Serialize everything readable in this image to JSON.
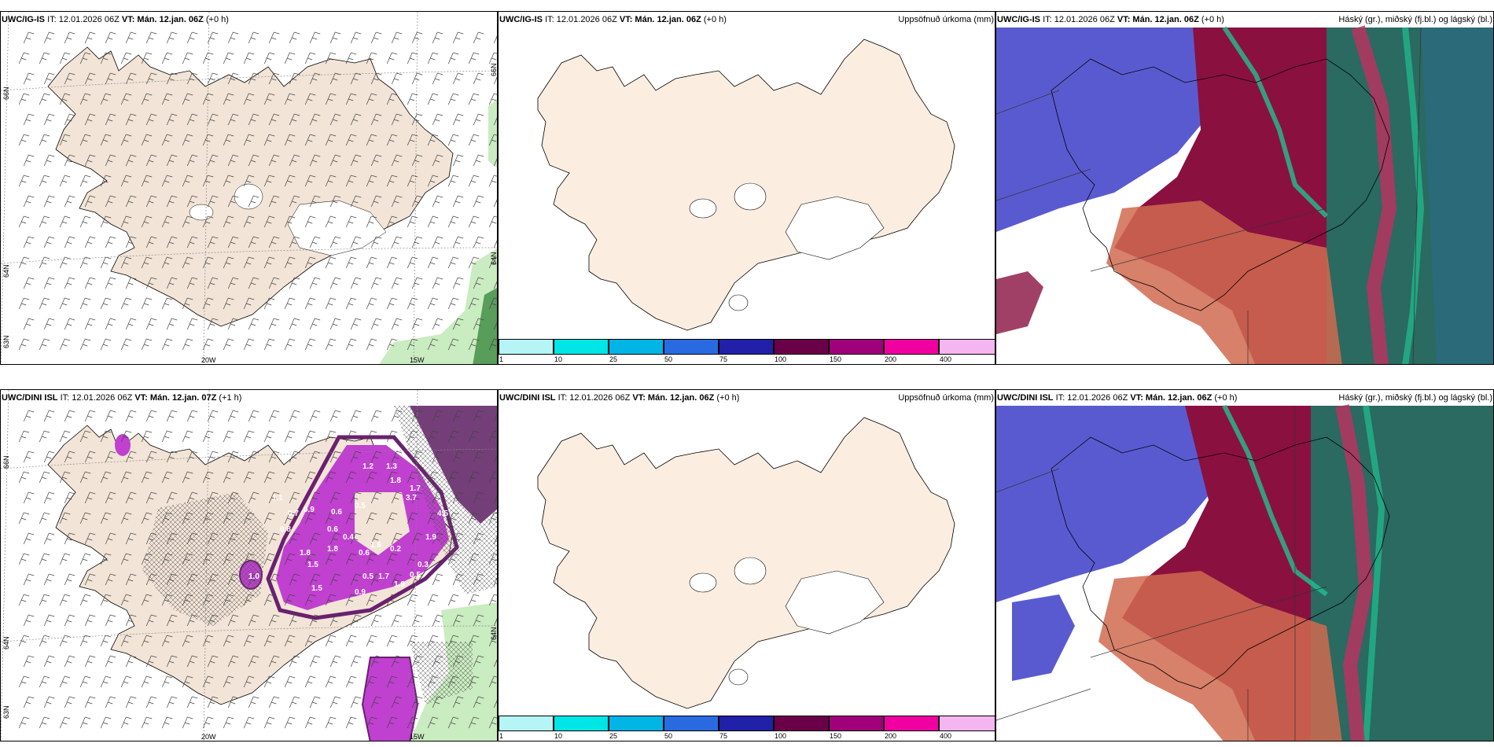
{
  "panels": {
    "ig_wind": {
      "model": "UWC/IG-IS",
      "it": "IT: 12.01.2026 06Z",
      "vt_label": "VT:",
      "vt": "Mán. 12.jan. 06Z",
      "lead": "(+0 h)",
      "lat_labels": [
        "66N",
        "64N",
        "63N"
      ],
      "lat_labels_right": [
        "66N",
        "64N"
      ],
      "lon_labels": [
        "20W",
        "15W"
      ]
    },
    "ig_precip": {
      "model": "UWC/IG-IS",
      "it": "IT: 12.01.2026 06Z",
      "vt_label": "VT:",
      "vt": "Mán. 12.jan. 06Z",
      "lead": "(+0 h)",
      "title_right": "Uppsöfnuð úrkoma (mm)"
    },
    "ig_cloud": {
      "model": "UWC/IG-IS",
      "it": "IT: 12.01.2026 06Z",
      "vt_label": "VT:",
      "vt": "Mán. 12.jan. 06Z",
      "lead": "(+0 h)",
      "title_right": "Háský (gr.), miðský (fj.bl.) og lágský (bl.)"
    },
    "dini_wind": {
      "model": "UWC/DINI ISL",
      "it": "IT: 12.01.2026 06Z",
      "vt_label": "VT:",
      "vt": "Mán. 12.jan. 07Z",
      "lead": "(+1 h)",
      "lat_labels": [
        "66N",
        "64N",
        "63N"
      ],
      "lat_labels_right": [
        "64N"
      ],
      "lon_labels": [
        "20W",
        "15W"
      ],
      "precip_values": [
        "1.2",
        "1.3",
        "1.8",
        "1.7",
        "0.9",
        "0.6",
        "0.5",
        "0.4",
        "1.1",
        "1.8",
        "1.5",
        "0.6",
        "1.6",
        "0.5",
        "1.7",
        "1.9",
        "0.2",
        "0.3",
        "0.5",
        "1.0",
        "1.5",
        "0.9",
        "0.8",
        "1.8",
        "0.6",
        "4.5",
        "3.7",
        "1.9",
        "0.7"
      ]
    },
    "dini_precip": {
      "model": "UWC/DINI ISL",
      "it": "IT: 12.01.2026 06Z",
      "vt_label": "VT:",
      "vt": "Mán. 12.jan. 06Z",
      "lead": "(+0 h)",
      "title_right": "Uppsöfnuð úrkoma (mm)"
    },
    "dini_cloud": {
      "model": "UWC/DINI ISL",
      "it": "IT: 12.01.2026 06Z",
      "vt_label": "VT:",
      "vt": "Mán. 12.jan. 06Z",
      "lead": "(+0 h)",
      "title_right": "Háský (gr.), miðský (fj.bl.) og lágský (bl.)"
    }
  },
  "precip_colorbar": {
    "ticks": [
      "1",
      "10",
      "25",
      "50",
      "75",
      "100",
      "150",
      "200",
      "400"
    ],
    "colors": [
      "#b5f5f5",
      "#00e5e5",
      "#00b5e5",
      "#2a6ae0",
      "#2020a8",
      "#6a0048",
      "#a0007a",
      "#f000a0",
      "#f5b5f0"
    ]
  },
  "colors": {
    "land": "#f2e4d6",
    "land_precip": "#fbeee0",
    "purple_precip": "#c040d0",
    "cloud_blue": "#5a5ad0",
    "cloud_maroon": "#8a1040",
    "cloud_teal": "#2a6a60",
    "cloud_red": "#d06a50"
  }
}
